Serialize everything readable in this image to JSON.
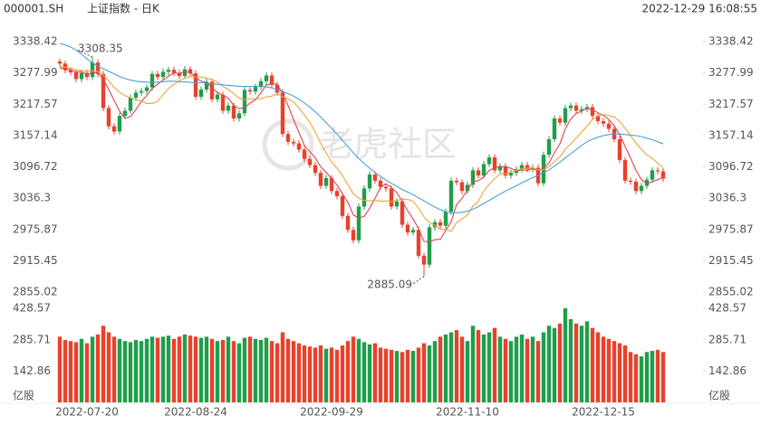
{
  "header": {
    "symbol": "000001.SH",
    "name": "上证指数 - 日K",
    "timestamp": "2022-12-29 16:08:55"
  },
  "watermark": "老虎社区",
  "chart_data": {
    "type": "candlestick",
    "categories": [
      null,
      null,
      null,
      null,
      null,
      "2022-07-20",
      null,
      null,
      null,
      null,
      null,
      null,
      null,
      null,
      null,
      null,
      null,
      null,
      null,
      null,
      null,
      null,
      null,
      null,
      null,
      "2022-08-24",
      null,
      null,
      null,
      null,
      null,
      null,
      null,
      null,
      null,
      null,
      null,
      null,
      null,
      null,
      null,
      null,
      null,
      null,
      null,
      null,
      null,
      null,
      null,
      null,
      "2022-09-29",
      null,
      null,
      null,
      null,
      null,
      null,
      null,
      null,
      null,
      null,
      null,
      null,
      null,
      null,
      null,
      null,
      null,
      null,
      null,
      null,
      null,
      null,
      null,
      null,
      "2022-11-10",
      null,
      null,
      null,
      null,
      null,
      null,
      null,
      null,
      null,
      null,
      null,
      null,
      null,
      null,
      null,
      null,
      null,
      null,
      null,
      null,
      null,
      null,
      null,
      null,
      "2022-12-15",
      null,
      null,
      null,
      null,
      null,
      null,
      null,
      null,
      null,
      null,
      null
    ],
    "open": [
      3300,
      3296,
      3283,
      3279,
      3266,
      3278,
      3270,
      3298,
      3276,
      3210,
      3175,
      3165,
      3195,
      3205,
      3230,
      3240,
      3243,
      3250,
      3276,
      3270,
      3280,
      3284,
      3278,
      3272,
      3285,
      3277,
      3232,
      3246,
      3261,
      3227,
      3236,
      3205,
      3215,
      3190,
      3200,
      3245,
      3242,
      3251,
      3262,
      3273,
      3255,
      3240,
      3160,
      3145,
      3142,
      3130,
      3112,
      3100,
      3085,
      3060,
      3075,
      3050,
      3040,
      3002,
      2975,
      2955,
      3020,
      3055,
      3082,
      3070,
      3058,
      3055,
      3020,
      3030,
      2985,
      2970,
      2975,
      2925,
      2908,
      2980,
      2990,
      2983,
      3010,
      3070,
      3067,
      3050,
      3062,
      3090,
      3080,
      3102,
      3115,
      3090,
      3098,
      3080,
      3085,
      3092,
      3100,
      3092,
      3095,
      3065,
      3120,
      3150,
      3190,
      3182,
      3210,
      3215,
      3205,
      3208,
      3212,
      3195,
      3185,
      3180,
      3170,
      3150,
      3110,
      3070,
      3068,
      3050,
      3060,
      3072,
      3090,
      3088
    ],
    "high": [
      3306,
      3302,
      3289,
      3285,
      3284,
      3284,
      3308.35,
      3304,
      3282,
      3216,
      3181,
      3201,
      3211,
      3236,
      3246,
      3249,
      3256,
      3282,
      3282,
      3286,
      3290,
      3290,
      3284,
      3291,
      3291,
      3283,
      3252,
      3267,
      3267,
      3242,
      3242,
      3221,
      3221,
      3206,
      3251,
      3251,
      3257,
      3268,
      3279,
      3279,
      3261,
      3246,
      3166,
      3151,
      3148,
      3136,
      3118,
      3106,
      3091,
      3081,
      3081,
      3056,
      3046,
      3008,
      2981,
      3026,
      3061,
      3088,
      3088,
      3076,
      3064,
      3061,
      3036,
      3036,
      2991,
      2981,
      2981,
      2931,
      2986,
      2996,
      2996,
      3016,
      3076,
      3076,
      3073,
      3068,
      3096,
      3096,
      3108,
      3121,
      3121,
      3104,
      3104,
      3091,
      3098,
      3106,
      3106,
      3101,
      3101,
      3126,
      3156,
      3196,
      3196,
      3216,
      3221,
      3221,
      3214,
      3218,
      3218,
      3201,
      3191,
      3186,
      3176,
      3156,
      3116,
      3076,
      3074,
      3066,
      3078,
      3096,
      3096,
      3094
    ],
    "low": [
      3290,
      3277,
      3273,
      3260,
      3260,
      3264,
      3264,
      3270,
      3204,
      3169,
      3159,
      3159,
      3189,
      3199,
      3224,
      3234,
      3237,
      3244,
      3264,
      3264,
      3274,
      3272,
      3266,
      3266,
      3271,
      3226,
      3226,
      3240,
      3221,
      3221,
      3199,
      3199,
      3184,
      3184,
      3194,
      3236,
      3236,
      3245,
      3256,
      3249,
      3234,
      3154,
      3139,
      3136,
      3124,
      3106,
      3094,
      3079,
      3054,
      3054,
      3044,
      3034,
      2996,
      2969,
      2949,
      2949,
      3014,
      3049,
      3064,
      3052,
      3049,
      3014,
      3014,
      2979,
      2964,
      2964,
      2919,
      2885.09,
      2902,
      2974,
      2977,
      2977,
      3004,
      3061,
      3044,
      3044,
      3056,
      3074,
      3074,
      3096,
      3084,
      3084,
      3074,
      3074,
      3079,
      3086,
      3086,
      3086,
      3059,
      3059,
      3114,
      3144,
      3176,
      3176,
      3204,
      3199,
      3199,
      3202,
      3189,
      3179,
      3174,
      3164,
      3144,
      3104,
      3064,
      3062,
      3044,
      3044,
      3054,
      3066,
      3082,
      3068
    ],
    "close": [
      3296,
      3283,
      3279,
      3266,
      3278,
      3270,
      3298,
      3276,
      3210,
      3175,
      3165,
      3195,
      3205,
      3230,
      3240,
      3243,
      3250,
      3276,
      3270,
      3280,
      3284,
      3278,
      3272,
      3285,
      3277,
      3232,
      3246,
      3261,
      3227,
      3236,
      3205,
      3215,
      3190,
      3200,
      3245,
      3242,
      3251,
      3262,
      3273,
      3255,
      3240,
      3160,
      3145,
      3142,
      3130,
      3112,
      3100,
      3085,
      3060,
      3075,
      3050,
      3040,
      3002,
      2975,
      2955,
      3020,
      3055,
      3082,
      3070,
      3058,
      3055,
      3020,
      3030,
      2985,
      2970,
      2975,
      2925,
      2908,
      2980,
      2990,
      2983,
      3010,
      3070,
      3067,
      3050,
      3062,
      3090,
      3080,
      3102,
      3115,
      3090,
      3098,
      3080,
      3085,
      3092,
      3100,
      3092,
      3095,
      3065,
      3120,
      3150,
      3190,
      3182,
      3210,
      3215,
      3205,
      3208,
      3212,
      3195,
      3185,
      3180,
      3170,
      3150,
      3110,
      3070,
      3068,
      3050,
      3060,
      3072,
      3090,
      3088,
      3074
    ],
    "up_color": "#1f9e4b",
    "down_color": "#e8412c",
    "ylim": [
      2855.02,
      3338.42
    ],
    "yticks": [
      3338.42,
      3277.99,
      3217.57,
      3157.14,
      3096.72,
      3036.3,
      2975.87,
      2915.45,
      2855.02
    ],
    "ma": [
      {
        "color": "#e2434f",
        "values": [
          3288,
          3286,
          3284,
          3280,
          3280,
          3275,
          3278,
          3278,
          3266,
          3246,
          3225,
          3204,
          3190,
          3194,
          3207,
          3223,
          3234,
          3248,
          3256,
          3264,
          3272,
          3278,
          3277,
          3280,
          3279,
          3269,
          3262,
          3260,
          3249,
          3240,
          3235,
          3229,
          3215,
          3209,
          3211,
          3220,
          3226,
          3240,
          3255,
          3257,
          3256,
          3238,
          3215,
          3188,
          3163,
          3138,
          3126,
          3114,
          3097,
          3086,
          3074,
          3062,
          3045,
          3028,
          3004,
          2998,
          3001,
          3017,
          3036,
          3057,
          3064,
          3057,
          3047,
          3030,
          3012,
          2996,
          2977,
          2953,
          2952,
          2956,
          2957,
          2974,
          2991,
          3024,
          3036,
          3052,
          3068,
          3070,
          3077,
          3090,
          3095,
          3097,
          3097,
          3094,
          3089,
          3091,
          3090,
          3093,
          3089,
          3094,
          3104,
          3124,
          3141,
          3170,
          3189,
          3200,
          3204,
          3210,
          3207,
          3201,
          3196,
          3188,
          3176,
          3159,
          3136,
          3114,
          3090,
          3072,
          3064,
          3068,
          3072,
          3077
        ]
      },
      {
        "color": "#f2a33a",
        "values": [
          3290,
          3289,
          3287,
          3284,
          3283,
          3281,
          3282,
          3281,
          3273,
          3263,
          3250,
          3241,
          3234,
          3230,
          3226,
          3224,
          3219,
          3219,
          3223,
          3236,
          3248,
          3256,
          3263,
          3268,
          3271,
          3270,
          3270,
          3268,
          3265,
          3260,
          3252,
          3246,
          3238,
          3229,
          3226,
          3228,
          3228,
          3228,
          3232,
          3233,
          3238,
          3232,
          3228,
          3222,
          3210,
          3197,
          3182,
          3164,
          3142,
          3124,
          3106,
          3094,
          3080,
          3062,
          3045,
          3036,
          3032,
          3031,
          3032,
          3030,
          3031,
          3029,
          3032,
          3034,
          3034,
          3030,
          3017,
          3000,
          2989,
          2984,
          2976,
          2976,
          2972,
          2989,
          2996,
          3004,
          3021,
          3030,
          3050,
          3063,
          3074,
          3083,
          3084,
          3086,
          3090,
          3093,
          3094,
          3095,
          3091,
          3091,
          3097,
          3107,
          3116,
          3131,
          3141,
          3152,
          3164,
          3175,
          3188,
          3195,
          3198,
          3196,
          3193,
          3184,
          3171,
          3157,
          3143,
          3130,
          3120,
          3113,
          3104,
          3095
        ]
      },
      {
        "color": "#4a9fd8",
        "values": [
          3335,
          3332,
          3328,
          3322,
          3314,
          3305,
          3297,
          3291,
          3286,
          3281,
          3276,
          3271,
          3267,
          3264,
          3262,
          3261,
          3260,
          3260,
          3260,
          3261,
          3262,
          3262,
          3261,
          3261,
          3260,
          3259,
          3259,
          3258,
          3257,
          3256,
          3255,
          3254,
          3253,
          3252,
          3252,
          3252,
          3252,
          3252,
          3251,
          3249,
          3246,
          3242,
          3238,
          3233,
          3227,
          3220,
          3212,
          3203,
          3193,
          3182,
          3171,
          3160,
          3148,
          3136,
          3124,
          3113,
          3103,
          3094,
          3086,
          3078,
          3071,
          3065,
          3059,
          3053,
          3048,
          3043,
          3037,
          3031,
          3025,
          3019,
          3014,
          3010,
          3008,
          3008,
          3009,
          3011,
          3015,
          3020,
          3026,
          3032,
          3038,
          3044,
          3050,
          3055,
          3060,
          3066,
          3071,
          3076,
          3080,
          3085,
          3091,
          3098,
          3106,
          3114,
          3122,
          3130,
          3138,
          3145,
          3150,
          3154,
          3157,
          3159,
          3160,
          3160,
          3159,
          3158,
          3157,
          3155,
          3152,
          3149,
          3145,
          3141
        ]
      }
    ],
    "volume": {
      "type": "bar",
      "values": [
        300,
        285,
        280,
        275,
        290,
        270,
        300,
        310,
        350,
        320,
        300,
        290,
        280,
        275,
        285,
        280,
        290,
        300,
        295,
        300,
        305,
        290,
        300,
        310,
        305,
        300,
        295,
        300,
        290,
        280,
        285,
        300,
        280,
        270,
        295,
        300,
        290,
        285,
        295,
        280,
        270,
        320,
        290,
        280,
        270,
        260,
        255,
        250,
        260,
        245,
        250,
        240,
        260,
        280,
        300,
        290,
        275,
        265,
        270,
        250,
        245,
        240,
        235,
        230,
        240,
        235,
        250,
        270,
        260,
        280,
        300,
        310,
        320,
        330,
        300,
        280,
        350,
        330,
        310,
        320,
        340,
        300,
        290,
        280,
        300,
        310,
        290,
        300,
        280,
        320,
        350,
        340,
        360,
        430,
        380,
        360,
        350,
        370,
        340,
        320,
        300,
        290,
        280,
        270,
        260,
        230,
        220,
        210,
        230,
        235,
        240,
        230
      ],
      "ylim": [
        0,
        450
      ],
      "yticks": [
        142.86,
        285.71,
        428.57
      ],
      "unit": "亿股"
    }
  }
}
